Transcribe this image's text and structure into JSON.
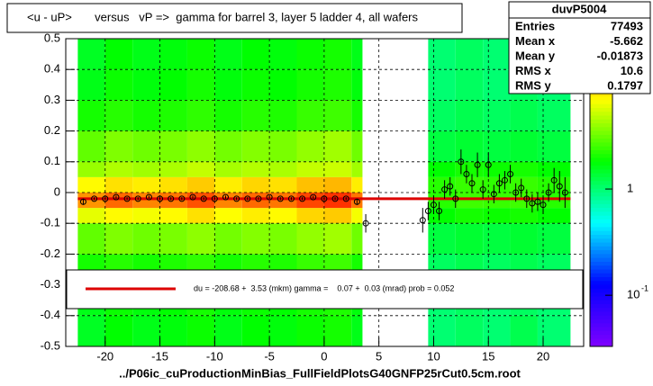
{
  "chart_data": {
    "type": "heatmap2d",
    "title": "<u - uP>       versus   vP =>  gamma for barrel 3, layer 5 ladder 4, all wafers",
    "x_label": "../P06ic_cuProductionMinBias_FullFieldPlotsG40GNFP25rCut0.5cm.root",
    "xlim": [
      -23.6,
      23.7
    ],
    "ylim": [
      -0.5,
      0.5
    ],
    "xticks": [
      -20,
      -15,
      -10,
      -5,
      0,
      5,
      10,
      15,
      20
    ],
    "yticks": [
      -0.5,
      -0.4,
      -0.3,
      -0.2,
      -0.1,
      0,
      0.1,
      0.2,
      0.3,
      0.4,
      0.5
    ],
    "grid": true,
    "heatmap": {
      "xbins": [
        -22.5,
        -20,
        -17.5,
        -15,
        -12.5,
        -10,
        -7.5,
        -5,
        -2.5,
        0,
        2.5,
        3.5,
        9.5,
        12,
        14.5,
        17,
        19.5,
        22.5
      ],
      "ybins": [
        -0.5,
        -0.4,
        -0.3,
        -0.2,
        -0.1,
        -0.05,
        0,
        0.05,
        0.1,
        0.2,
        0.3,
        0.4,
        0.5
      ],
      "z": [
        [
          1.5,
          1.8,
          1.6,
          1.7,
          1.9,
          1.6,
          1.8,
          1.7,
          1.9,
          2.0,
          1.6,
          null,
          1.0,
          1.1,
          1.0,
          1.2,
          1.0
        ],
        [
          1.6,
          1.9,
          1.7,
          1.8,
          2.0,
          1.7,
          1.9,
          1.8,
          2.0,
          2.1,
          1.7,
          null,
          1.0,
          1.1,
          1.0,
          1.1,
          1.0
        ],
        [
          2,
          2.2,
          2,
          2.1,
          2.3,
          2,
          2.2,
          2.1,
          2.4,
          2.5,
          2,
          null,
          1.1,
          1.2,
          1.1,
          1.2,
          1.1
        ],
        [
          3,
          3.5,
          3.2,
          3.4,
          3.8,
          3.3,
          3.6,
          3.4,
          3.9,
          4.2,
          3.2,
          null,
          1.3,
          1.4,
          1.3,
          1.4,
          1.3
        ],
        [
          6,
          7,
          6.5,
          7,
          8,
          6.8,
          7.5,
          7,
          8.5,
          9,
          6.5,
          null,
          1.8,
          2,
          1.9,
          2,
          1.8
        ],
        [
          12,
          15,
          13,
          14,
          17,
          13,
          15,
          14,
          18,
          20,
          14,
          null,
          2.2,
          2.5,
          2.4,
          2.5,
          2.2
        ],
        [
          7,
          8,
          7.5,
          8,
          9,
          7.5,
          8.5,
          8,
          9.5,
          10,
          7.5,
          null,
          2.2,
          2.4,
          2.3,
          2.4,
          2.2
        ],
        [
          4,
          4.5,
          4.2,
          4.4,
          5,
          4.3,
          4.6,
          4.4,
          5,
          5.2,
          4.2,
          null,
          1.8,
          2,
          1.9,
          2,
          1.8
        ],
        [
          3,
          3.5,
          3.2,
          3.4,
          3.8,
          3.3,
          3.6,
          3.4,
          3.9,
          4.2,
          3.2,
          null,
          1.3,
          1.4,
          1.3,
          1.4,
          1.3
        ],
        [
          2,
          2.2,
          2,
          2.1,
          2.3,
          2,
          2.2,
          2.1,
          2.4,
          2.5,
          2,
          null,
          1.1,
          1.2,
          1.1,
          1.2,
          1.1
        ],
        [
          1.6,
          1.9,
          1.7,
          1.8,
          2.0,
          1.7,
          1.9,
          1.8,
          2.0,
          2.1,
          1.7,
          null,
          1.0,
          1.1,
          1.0,
          1.1,
          1.0
        ],
        [
          1.5,
          1.8,
          1.6,
          1.7,
          1.9,
          1.6,
          1.8,
          1.7,
          1.9,
          2.0,
          1.6,
          null,
          1.0,
          1.1,
          1.0,
          1.2,
          1.0
        ]
      ],
      "zlim": [
        0.033,
        26
      ],
      "log_z": true,
      "zticks": [
        {
          "value": 1,
          "label": "1"
        },
        {
          "value": 0.1,
          "label": "10",
          "exponent": "-1"
        }
      ],
      "palette": [
        "#7f00ff",
        "#0000ff",
        "#00ffff",
        "#00ff00",
        "#ffff00",
        "#ff0000"
      ]
    },
    "profile": {
      "color": "#000000",
      "x": [
        -22,
        -21,
        -20,
        -19,
        -18,
        -17,
        -16,
        -15,
        -14,
        -13,
        -12,
        -11,
        -10,
        -9,
        -8,
        -7,
        -6,
        -5,
        -4,
        -3,
        -2,
        -1,
        0,
        1,
        2,
        3,
        3.8,
        9,
        9.5,
        10,
        10.5,
        11,
        11.5,
        12,
        12.5,
        13,
        13.5,
        14,
        14.5,
        15,
        15.5,
        16,
        16.5,
        17,
        17.5,
        18,
        18.5,
        19,
        19.5,
        20,
        20.5,
        21,
        21.5,
        22
      ],
      "y": [
        -0.03,
        -0.02,
        -0.02,
        -0.015,
        -0.02,
        -0.02,
        -0.015,
        -0.02,
        -0.02,
        -0.02,
        -0.015,
        -0.02,
        -0.02,
        -0.015,
        -0.02,
        -0.02,
        -0.02,
        -0.015,
        -0.02,
        -0.02,
        -0.02,
        -0.015,
        -0.02,
        -0.02,
        -0.02,
        -0.03,
        -0.1,
        -0.09,
        -0.06,
        -0.04,
        -0.06,
        0.01,
        0.02,
        -0.02,
        0.1,
        0.06,
        0.03,
        0.09,
        0.01,
        0.09,
        -0.005,
        0.03,
        0.04,
        0.06,
        0,
        0.015,
        -0.02,
        -0.035,
        -0.03,
        -0.04,
        0,
        0.04,
        0.02,
        0
      ],
      "err": [
        0.01,
        0.005,
        0.005,
        0.005,
        0.005,
        0.005,
        0.005,
        0.005,
        0.005,
        0.005,
        0.005,
        0.005,
        0.005,
        0.005,
        0.005,
        0.005,
        0.005,
        0.005,
        0.005,
        0.005,
        0.005,
        0.005,
        0.005,
        0.005,
        0.005,
        0.01,
        0.03,
        0.04,
        0.03,
        0.03,
        0.03,
        0.03,
        0.03,
        0.03,
        0.04,
        0.03,
        0.03,
        0.04,
        0.03,
        0.04,
        0.03,
        0.03,
        0.03,
        0.03,
        0.03,
        0.03,
        0.03,
        0.03,
        0.03,
        0.03,
        0.03,
        0.04,
        0.05,
        0.05
      ]
    },
    "fit": {
      "color": "#dd0000",
      "y": -0.02,
      "xrange": [
        -22.5,
        22.5
      ],
      "text": "du = -208.68 +  3.53 (mkm) gamma =    0.07 +  0.03 (mrad) prob = 0.052"
    },
    "stats": {
      "title": "duvP5004",
      "rows": [
        [
          "Entries",
          77493
        ],
        [
          "Mean x",
          -5.662
        ],
        [
          "Mean y",
          -0.01873
        ],
        [
          "RMS x",
          10.6
        ],
        [
          "RMS y",
          0.1797
        ]
      ]
    }
  }
}
